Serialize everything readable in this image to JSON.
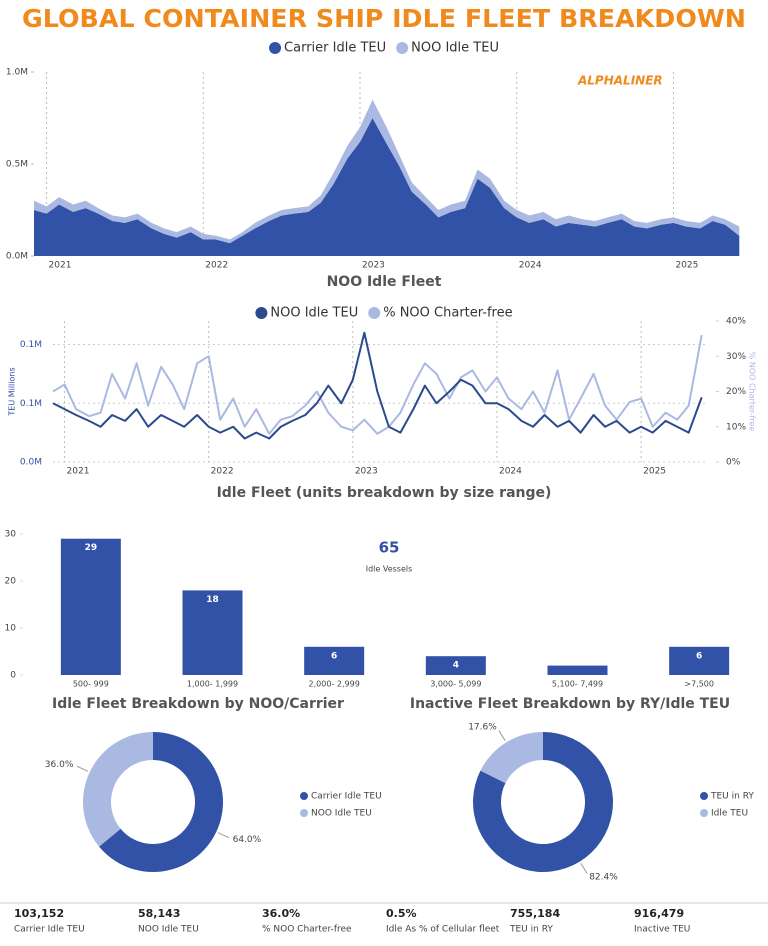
{
  "title": "GLOBAL CONTAINER SHIP IDLE FLEET BREAKDOWN",
  "chart_data": [
    {
      "type": "area",
      "stacked": true,
      "annotation": "ALPHALINER",
      "x": [
        2020.92,
        2021,
        2021.08,
        2021.17,
        2021.25,
        2021.33,
        2021.42,
        2021.5,
        2021.58,
        2021.67,
        2021.75,
        2021.83,
        2021.92,
        2022,
        2022.08,
        2022.17,
        2022.25,
        2022.33,
        2022.42,
        2022.5,
        2022.58,
        2022.67,
        2022.75,
        2022.83,
        2022.92,
        2023,
        2023.08,
        2023.17,
        2023.25,
        2023.33,
        2023.42,
        2023.5,
        2023.58,
        2023.67,
        2023.75,
        2023.83,
        2023.92,
        2024,
        2024.08,
        2024.17,
        2024.25,
        2024.33,
        2024.42,
        2024.5,
        2024.58,
        2024.67,
        2024.75,
        2024.83,
        2024.92,
        2025,
        2025.08,
        2025.17,
        2025.25,
        2025.33,
        2025.42
      ],
      "series": [
        {
          "name": "Carrier Idle TEU",
          "color": "#3152a6",
          "values": [
            0.25,
            0.23,
            0.28,
            0.24,
            0.26,
            0.23,
            0.19,
            0.18,
            0.2,
            0.15,
            0.12,
            0.1,
            0.13,
            0.09,
            0.09,
            0.07,
            0.11,
            0.15,
            0.19,
            0.22,
            0.23,
            0.24,
            0.29,
            0.39,
            0.53,
            0.62,
            0.75,
            0.61,
            0.49,
            0.35,
            0.28,
            0.21,
            0.24,
            0.26,
            0.42,
            0.37,
            0.26,
            0.21,
            0.18,
            0.2,
            0.16,
            0.18,
            0.17,
            0.16,
            0.18,
            0.2,
            0.16,
            0.15,
            0.17,
            0.18,
            0.16,
            0.15,
            0.19,
            0.17,
            0.11
          ]
        },
        {
          "name": "NOO Idle TEU",
          "color": "#aab9e2",
          "values": [
            0.05,
            0.04,
            0.04,
            0.04,
            0.04,
            0.03,
            0.03,
            0.03,
            0.03,
            0.03,
            0.03,
            0.03,
            0.03,
            0.03,
            0.02,
            0.02,
            0.02,
            0.03,
            0.03,
            0.03,
            0.03,
            0.03,
            0.04,
            0.06,
            0.07,
            0.08,
            0.1,
            0.09,
            0.06,
            0.05,
            0.04,
            0.04,
            0.04,
            0.04,
            0.05,
            0.05,
            0.04,
            0.04,
            0.04,
            0.04,
            0.04,
            0.04,
            0.03,
            0.03,
            0.03,
            0.03,
            0.03,
            0.03,
            0.03,
            0.03,
            0.03,
            0.03,
            0.03,
            0.03,
            0.05
          ]
        }
      ],
      "xlim": [
        2020.92,
        2025.45
      ],
      "xticks": [
        2021,
        2022,
        2023,
        2024,
        2025
      ],
      "ylim": [
        0,
        1
      ],
      "yticks": [
        {
          "value": 0,
          "label": "0.0M"
        },
        {
          "value": 0.5,
          "label": "0.5M"
        },
        {
          "value": 1,
          "label": "1.0M"
        }
      ],
      "grid": "x"
    },
    {
      "type": "line",
      "title": "NOO Idle Fleet",
      "y_label": "TEU Millions",
      "y2_label": "% NOO Charter-free",
      "x": [
        2020.92,
        2021,
        2021.08,
        2021.17,
        2021.25,
        2021.33,
        2021.42,
        2021.5,
        2021.58,
        2021.67,
        2021.75,
        2021.83,
        2021.92,
        2022,
        2022.08,
        2022.17,
        2022.25,
        2022.33,
        2022.42,
        2022.5,
        2022.58,
        2022.67,
        2022.75,
        2022.83,
        2022.92,
        2023,
        2023.08,
        2023.17,
        2023.25,
        2023.33,
        2023.42,
        2023.5,
        2023.58,
        2023.67,
        2023.75,
        2023.83,
        2023.92,
        2024,
        2024.08,
        2024.17,
        2024.25,
        2024.33,
        2024.42,
        2024.5,
        2024.58,
        2024.67,
        2024.75,
        2024.83,
        2024.92,
        2025,
        2025.08,
        2025.17,
        2025.25,
        2025.33,
        2025.42
      ],
      "series": [
        {
          "name": "NOO Idle TEU",
          "color": "#2c4a8e",
          "values": [
            0.05,
            0.045,
            0.04,
            0.035,
            0.03,
            0.04,
            0.035,
            0.045,
            0.03,
            0.04,
            0.035,
            0.03,
            0.04,
            0.03,
            0.025,
            0.03,
            0.02,
            0.025,
            0.02,
            0.03,
            0.035,
            0.04,
            0.05,
            0.065,
            0.05,
            0.07,
            0.11,
            0.06,
            0.03,
            0.025,
            0.045,
            0.065,
            0.05,
            0.06,
            0.07,
            0.065,
            0.05,
            0.05,
            0.045,
            0.035,
            0.03,
            0.04,
            0.03,
            0.035,
            0.025,
            0.04,
            0.03,
            0.035,
            0.025,
            0.03,
            0.025,
            0.035,
            0.03,
            0.025,
            0.055
          ]
        },
        {
          "name": "% NOO Charter-free",
          "color": "#aab9e2",
          "axis": "y2",
          "values": [
            20,
            22,
            15,
            13,
            14,
            25,
            18,
            28,
            16,
            27,
            22,
            15,
            28,
            30,
            12,
            18,
            10,
            15,
            8,
            12,
            13,
            16,
            20,
            14,
            10,
            9,
            12,
            8,
            10,
            14,
            22,
            28,
            25,
            18,
            24,
            26,
            20,
            24,
            18,
            15,
            20,
            14,
            26,
            12,
            18,
            25,
            16,
            12,
            17,
            18,
            10,
            14,
            12,
            16,
            36
          ]
        }
      ],
      "xlim": [
        2020.92,
        2025.45
      ],
      "xticks": [
        2021,
        2022,
        2023,
        2024,
        2025
      ],
      "ylim": [
        0,
        0.12
      ],
      "yticks": [
        {
          "value": 0,
          "label": "0.0M"
        },
        {
          "value": 0.05,
          "label": "0.1M"
        },
        {
          "value": 0.1,
          "label": "0.1M"
        }
      ],
      "y2lim": [
        0,
        40
      ],
      "y2ticks": [
        {
          "value": 0,
          "label": "0%"
        },
        {
          "value": 10,
          "label": "10%"
        },
        {
          "value": 20,
          "label": "20%"
        },
        {
          "value": 30,
          "label": "30%"
        },
        {
          "value": 40,
          "label": "40%"
        }
      ],
      "grid": "both"
    },
    {
      "type": "bar",
      "title": "Idle Fleet (units breakdown by size range)",
      "categories": [
        "500- 999",
        "1,000- 1,999",
        "2,000- 2,999",
        "3,000- 5,099",
        "5,100- 7,499",
        ">7,500"
      ],
      "values": [
        29,
        18,
        6,
        4,
        2,
        6
      ],
      "color": "#3152a6",
      "ylim": [
        0,
        30
      ],
      "yticks": [
        0,
        10,
        20,
        30
      ],
      "card": {
        "value": 65,
        "label": "Idle Vessels"
      }
    },
    {
      "type": "donut",
      "title": "Idle Fleet Breakdown by NOO/Carrier",
      "categories": [
        "Carrier Idle TEU",
        "NOO Idle TEU"
      ],
      "values": [
        64.0,
        36.0
      ],
      "value_labels": [
        "64.0%",
        "36.0%"
      ],
      "colors": [
        "#3152a6",
        "#aab9e2"
      ]
    },
    {
      "type": "donut",
      "title": "Inactive Fleet Breakdown by RY/Idle TEU",
      "categories": [
        "TEU in RY",
        "Idle TEU"
      ],
      "values": [
        82.4,
        17.6
      ],
      "value_labels": [
        "82.4%",
        "17.6%"
      ],
      "colors": [
        "#3152a6",
        "#aab9e2"
      ]
    }
  ],
  "kpis": [
    {
      "value": "103,152",
      "label": "Carrier Idle TEU"
    },
    {
      "value": "58,143",
      "label": "NOO Idle TEU"
    },
    {
      "value": "36.0%",
      "label": "% NOO Charter-free"
    },
    {
      "value": "0.5%",
      "label": "Idle As % of Cellular fleet"
    },
    {
      "value": "755,184",
      "label": "TEU in RY"
    },
    {
      "value": "916,479",
      "label": "Inactive TEU"
    }
  ]
}
